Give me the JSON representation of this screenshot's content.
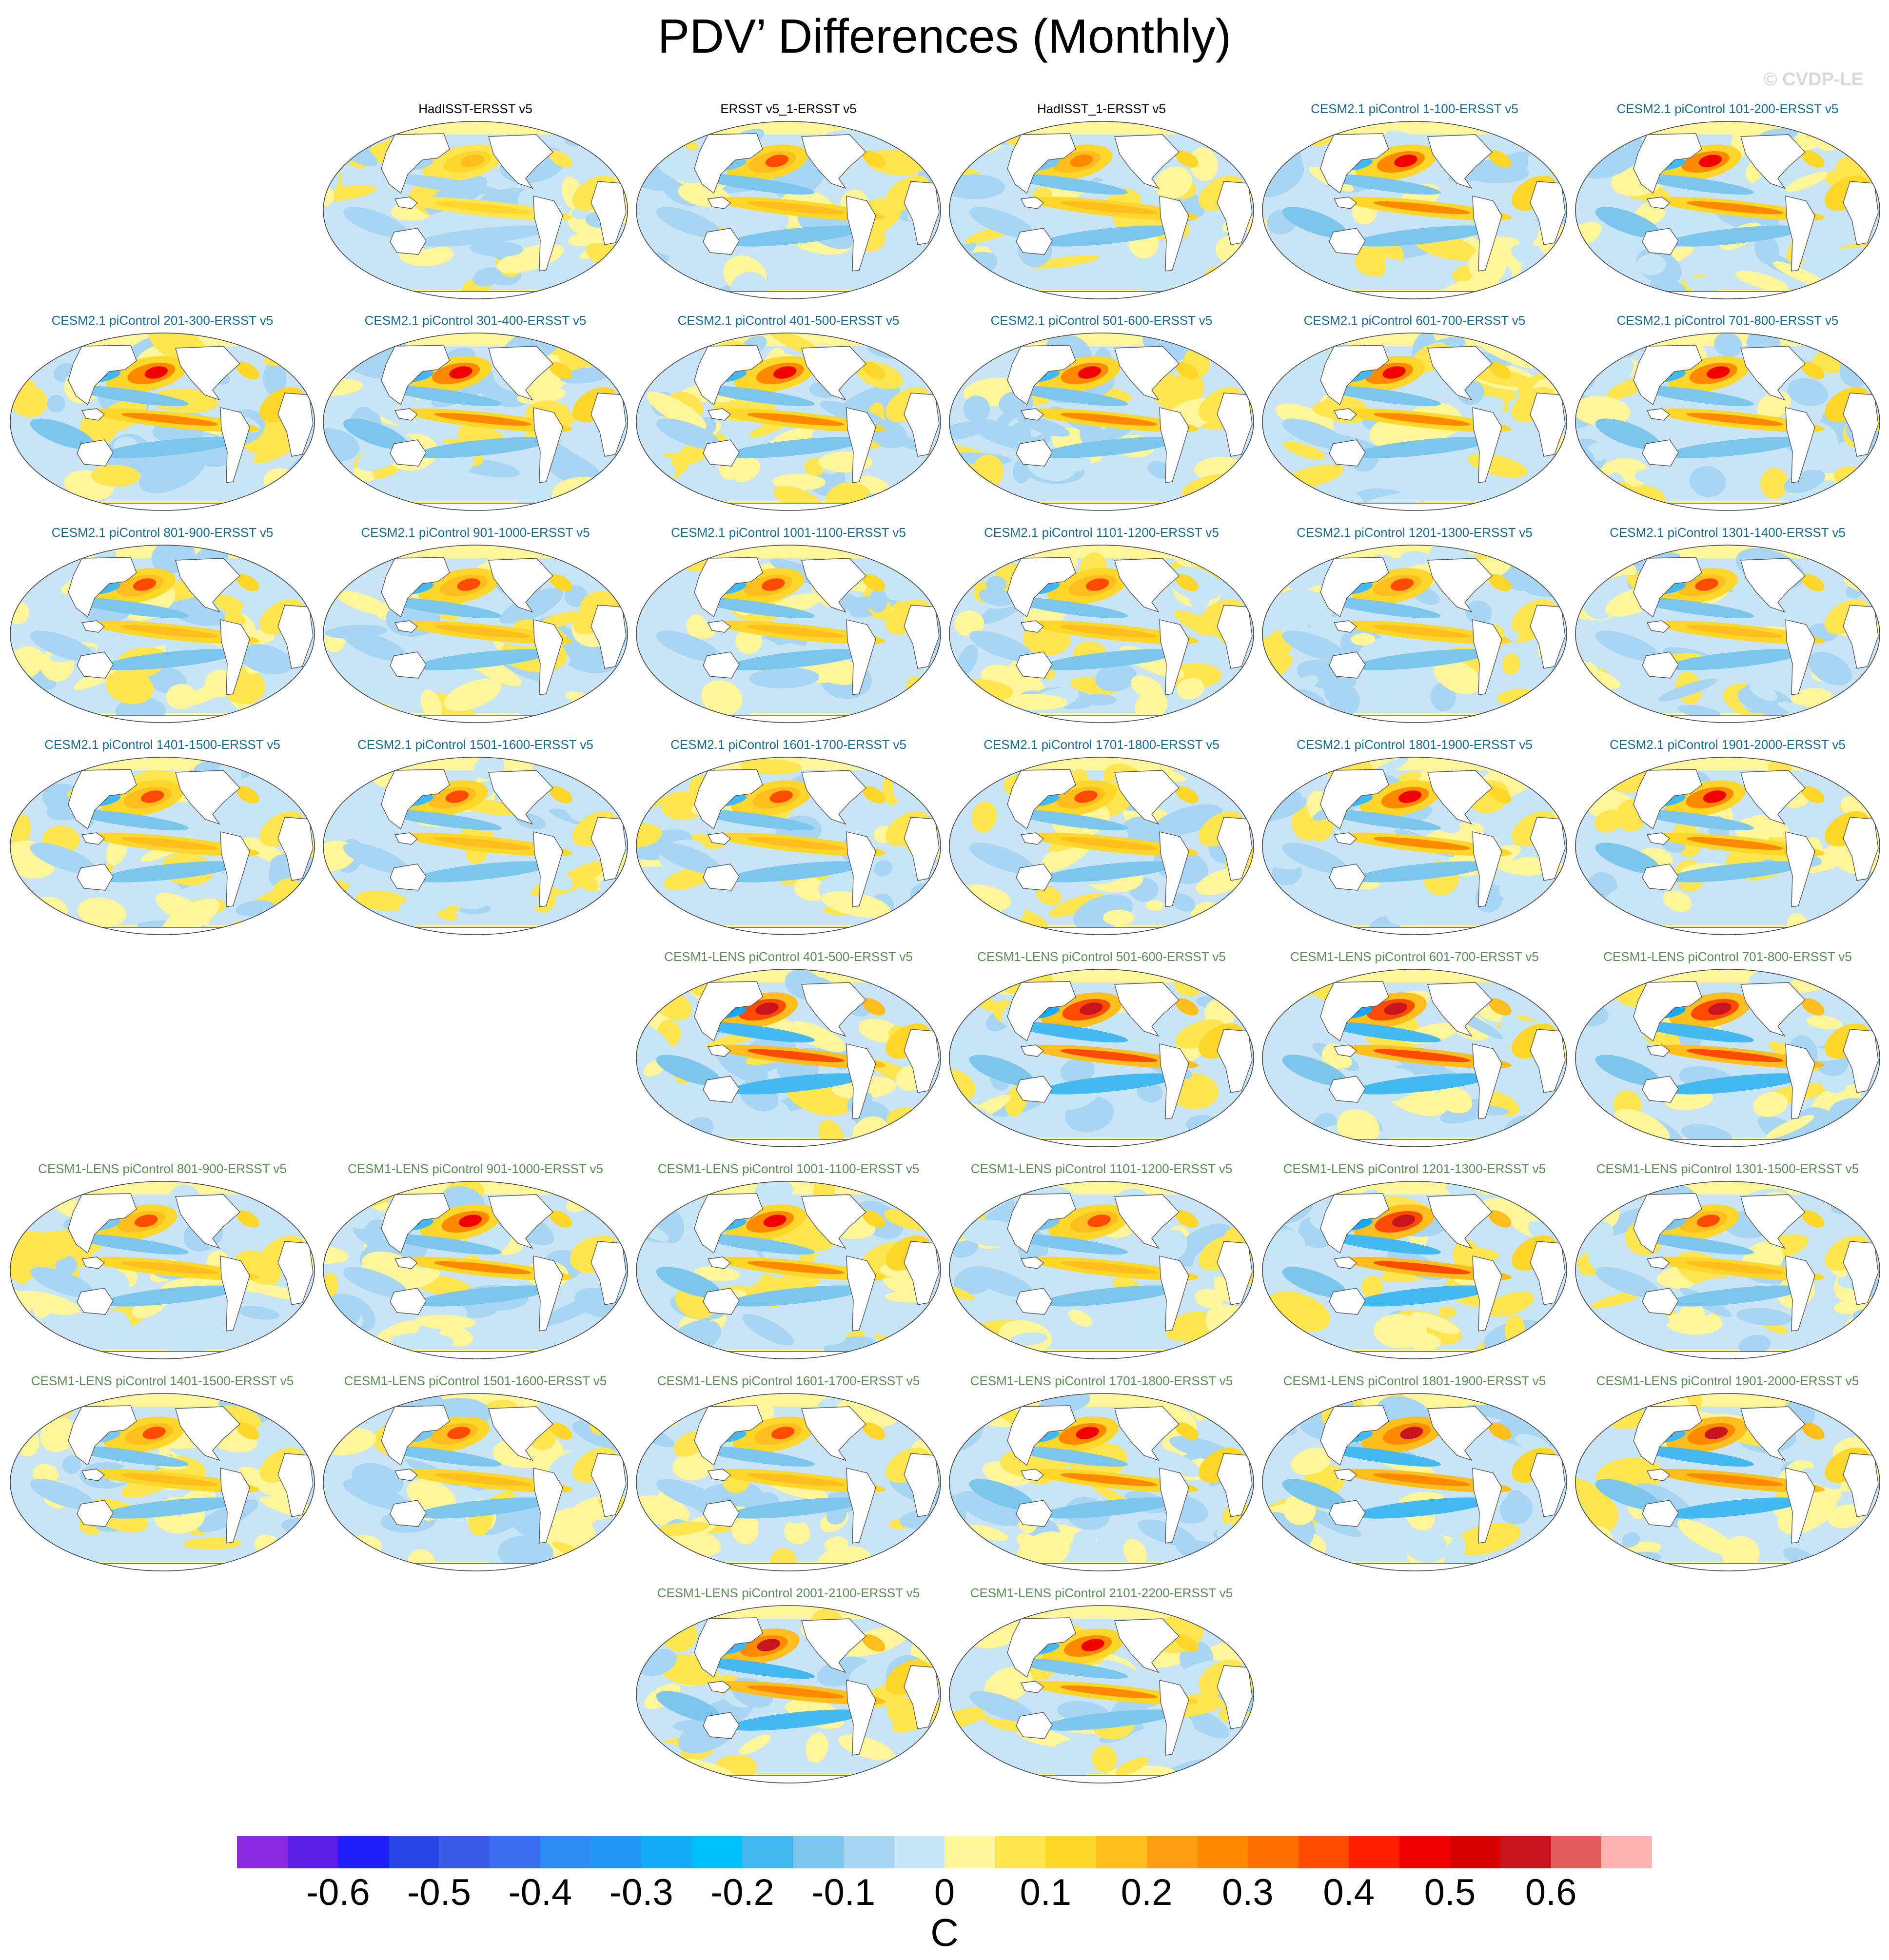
{
  "title": "PDV’ Differences (Monthly)",
  "credit": "© CVDP-LE",
  "units": "C",
  "colors": {
    "obs_title": "#000000",
    "cesm2_title": "#1a6a8c",
    "cesm1_title": "#5e8a5a",
    "ocean_base": "#c8e4f6",
    "coast": "#555555"
  },
  "colorbar": {
    "colors": [
      "#8a2be2",
      "#5a1ee6",
      "#1e1efa",
      "#2846e6",
      "#3a5ae6",
      "#3c6ef0",
      "#2e8cf5",
      "#2496f7",
      "#14aaf8",
      "#00c0fa",
      "#44b8f0",
      "#7cc6ee",
      "#a8d6f2",
      "#c6e6f6",
      "#fff59a",
      "#ffe650",
      "#ffd62a",
      "#ffbe1e",
      "#ffa014",
      "#ff8a00",
      "#ff6e00",
      "#ff4a00",
      "#ff1e00",
      "#f00000",
      "#d80000",
      "#c8141e",
      "#e25a5a",
      "#ffb4b4"
    ],
    "labels": [
      "-0.6",
      "-0.5",
      "-0.4",
      "-0.3",
      "-0.2",
      "-0.1",
      "0",
      "0.1",
      "0.2",
      "0.3",
      "0.4",
      "0.5",
      "0.6"
    ]
  },
  "maps": [
    {
      "row": 0,
      "col": 1,
      "group": "obs",
      "title": "HadISST-ERSST v5",
      "intensity": 0.35
    },
    {
      "row": 0,
      "col": 2,
      "group": "obs",
      "title": "ERSST v5_1-ERSST v5",
      "intensity": 0.6
    },
    {
      "row": 0,
      "col": 3,
      "group": "obs",
      "title": "HadISST_1-ERSST v5",
      "intensity": 0.55
    },
    {
      "row": 0,
      "col": 4,
      "group": "cesm2",
      "title": "CESM2.1 piControl 1-100-ERSST v5",
      "intensity": 0.75
    },
    {
      "row": 0,
      "col": 5,
      "group": "cesm2",
      "title": "CESM2.1 piControl 101-200-ERSST v5",
      "intensity": 0.75
    },
    {
      "row": 1,
      "col": 0,
      "group": "cesm2",
      "title": "CESM2.1 piControl 201-300-ERSST v5",
      "intensity": 0.8
    },
    {
      "row": 1,
      "col": 1,
      "group": "cesm2",
      "title": "CESM2.1 piControl 301-400-ERSST v5",
      "intensity": 0.75
    },
    {
      "row": 1,
      "col": 2,
      "group": "cesm2",
      "title": "CESM2.1 piControl 401-500-ERSST v5",
      "intensity": 0.7
    },
    {
      "row": 1,
      "col": 3,
      "group": "cesm2",
      "title": "CESM2.1 piControl 501-600-ERSST v5",
      "intensity": 0.7
    },
    {
      "row": 1,
      "col": 4,
      "group": "cesm2",
      "title": "CESM2.1 piControl 601-700-ERSST v5",
      "intensity": 0.7
    },
    {
      "row": 1,
      "col": 5,
      "group": "cesm2",
      "title": "CESM2.1 piControl 701-800-ERSST v5",
      "intensity": 0.8
    },
    {
      "row": 2,
      "col": 0,
      "group": "cesm2",
      "title": "CESM2.1 piControl 801-900-ERSST v5",
      "intensity": 0.65
    },
    {
      "row": 2,
      "col": 1,
      "group": "cesm2",
      "title": "CESM2.1 piControl 901-1000-ERSST v5",
      "intensity": 0.65
    },
    {
      "row": 2,
      "col": 2,
      "group": "cesm2",
      "title": "CESM2.1 piControl 1001-1100-ERSST v5",
      "intensity": 0.65
    },
    {
      "row": 2,
      "col": 3,
      "group": "cesm2",
      "title": "CESM2.1 piControl 1101-1200-ERSST v5",
      "intensity": 0.65
    },
    {
      "row": 2,
      "col": 4,
      "group": "cesm2",
      "title": "CESM2.1 piControl 1201-1300-ERSST v5",
      "intensity": 0.65
    },
    {
      "row": 2,
      "col": 5,
      "group": "cesm2",
      "title": "CESM2.1 piControl 1301-1400-ERSST v5",
      "intensity": 0.65
    },
    {
      "row": 3,
      "col": 0,
      "group": "cesm2",
      "title": "CESM2.1 piControl 1401-1500-ERSST v5",
      "intensity": 0.65
    },
    {
      "row": 3,
      "col": 1,
      "group": "cesm2",
      "title": "CESM2.1 piControl 1501-1600-ERSST v5",
      "intensity": 0.65
    },
    {
      "row": 3,
      "col": 2,
      "group": "cesm2",
      "title": "CESM2.1 piControl 1601-1700-ERSST v5",
      "intensity": 0.65
    },
    {
      "row": 3,
      "col": 3,
      "group": "cesm2",
      "title": "CESM2.1 piControl 1701-1800-ERSST v5",
      "intensity": 0.65
    },
    {
      "row": 3,
      "col": 4,
      "group": "cesm2",
      "title": "CESM2.1 piControl 1801-1900-ERSST v5",
      "intensity": 0.7
    },
    {
      "row": 3,
      "col": 5,
      "group": "cesm2",
      "title": "CESM2.1 piControl 1901-2000-ERSST v5",
      "intensity": 0.8
    },
    {
      "row": 4,
      "col": 2,
      "group": "cesm1",
      "title": "CESM1-LENS piControl 401-500-ERSST v5",
      "intensity": 0.9
    },
    {
      "row": 4,
      "col": 3,
      "group": "cesm1",
      "title": "CESM1-LENS piControl 501-600-ERSST v5",
      "intensity": 0.95
    },
    {
      "row": 4,
      "col": 4,
      "group": "cesm1",
      "title": "CESM1-LENS piControl 601-700-ERSST v5",
      "intensity": 0.9
    },
    {
      "row": 4,
      "col": 5,
      "group": "cesm1",
      "title": "CESM1-LENS piControl 701-800-ERSST v5",
      "intensity": 0.9
    },
    {
      "row": 5,
      "col": 0,
      "group": "cesm1",
      "title": "CESM1-LENS piControl 801-900-ERSST v5",
      "intensity": 0.6
    },
    {
      "row": 5,
      "col": 1,
      "group": "cesm1",
      "title": "CESM1-LENS piControl 901-1000-ERSST v5",
      "intensity": 0.7
    },
    {
      "row": 5,
      "col": 2,
      "group": "cesm1",
      "title": "CESM1-LENS piControl 1001-1100-ERSST v5",
      "intensity": 0.75
    },
    {
      "row": 5,
      "col": 3,
      "group": "cesm1",
      "title": "CESM1-LENS piControl 1101-1200-ERSST v5",
      "intensity": 0.6
    },
    {
      "row": 5,
      "col": 4,
      "group": "cesm1",
      "title": "CESM1-LENS piControl 1201-1300-ERSST v5",
      "intensity": 0.9
    },
    {
      "row": 5,
      "col": 5,
      "group": "cesm1",
      "title": "CESM1-LENS piControl 1301-1500-ERSST v5",
      "intensity": 0.6
    },
    {
      "row": 6,
      "col": 0,
      "group": "cesm1",
      "title": "CESM1-LENS piControl 1401-1500-ERSST v5",
      "intensity": 0.6
    },
    {
      "row": 6,
      "col": 1,
      "group": "cesm1",
      "title": "CESM1-LENS piControl 1501-1600-ERSST v5",
      "intensity": 0.6
    },
    {
      "row": 6,
      "col": 2,
      "group": "cesm1",
      "title": "CESM1-LENS piControl 1601-1700-ERSST v5",
      "intensity": 0.65
    },
    {
      "row": 6,
      "col": 3,
      "group": "cesm1",
      "title": "CESM1-LENS piControl 1701-1800-ERSST v5",
      "intensity": 0.75
    },
    {
      "row": 6,
      "col": 4,
      "group": "cesm1",
      "title": "CESM1-LENS piControl 1801-1900-ERSST v5",
      "intensity": 0.85
    },
    {
      "row": 6,
      "col": 5,
      "group": "cesm1",
      "title": "CESM1-LENS piControl 1901-2000-ERSST v5",
      "intensity": 0.85
    },
    {
      "row": 7,
      "col": 2,
      "group": "cesm1",
      "title": "CESM1-LENS piControl 2001-2100-ERSST v5",
      "intensity": 0.85
    },
    {
      "row": 7,
      "col": 3,
      "group": "cesm1",
      "title": "CESM1-LENS piControl 2101-2200-ERSST v5",
      "intensity": 0.7
    }
  ]
}
